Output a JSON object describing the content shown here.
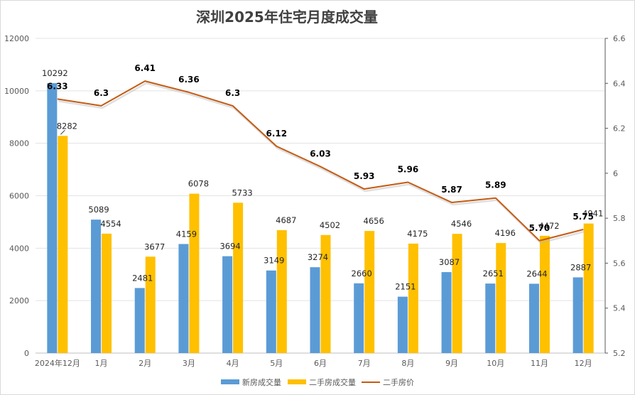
{
  "chart_data": {
    "type": "bar",
    "title": "深圳2025年住宅月度成交量",
    "categories": [
      "2024年12月",
      "1月",
      "2月",
      "3月",
      "4月",
      "5月",
      "6月",
      "7月",
      "8月",
      "9月",
      "10月",
      "11月",
      "12月"
    ],
    "series": [
      {
        "name": "新房成交量",
        "type": "bar",
        "axis": "left",
        "color": "#5b9bd5",
        "values": [
          10292,
          5089,
          2481,
          4159,
          3694,
          3149,
          3274,
          2660,
          2151,
          3087,
          2651,
          2644,
          2887
        ],
        "labels": [
          "10292",
          "5089",
          "2481",
          "4159",
          "3694",
          "3149",
          "3274",
          "2660",
          "2151",
          "3087",
          "2651",
          "2644",
          "2887"
        ]
      },
      {
        "name": "二手房成交量",
        "type": "bar",
        "axis": "left",
        "color": "#ffc000",
        "values": [
          8282,
          4554,
          3677,
          6078,
          5733,
          4687,
          4502,
          4656,
          4175,
          4546,
          4196,
          4472,
          4941
        ],
        "labels": [
          "8282",
          "4554",
          "3677",
          "6078",
          "5733",
          "4687",
          "4502",
          "4656",
          "4175",
          "4546",
          "4196",
          "4472",
          "4941"
        ]
      },
      {
        "name": "二手房价",
        "type": "line",
        "axis": "right",
        "color": "#c55a11",
        "values": [
          6.33,
          6.3,
          6.41,
          6.36,
          6.3,
          6.12,
          6.03,
          5.93,
          5.96,
          5.87,
          5.89,
          5.7,
          5.75
        ],
        "labels": [
          "6.33",
          "6.3",
          "6.41",
          "6.36",
          "6.3",
          "6.12",
          "6.03",
          "5.93",
          "5.96",
          "5.87",
          "5.89",
          "5.70",
          "5.75"
        ]
      }
    ],
    "y_left": {
      "min": 0,
      "max": 12000,
      "ticks": [
        "0",
        "2000",
        "4000",
        "6000",
        "8000",
        "10000",
        "12000"
      ]
    },
    "y_right": {
      "min": 5.2,
      "max": 6.6,
      "ticks": [
        "5.2",
        "5.4",
        "5.6",
        "5.8",
        "6",
        "6.2",
        "6.4",
        "6.6"
      ]
    },
    "grid": true,
    "legend": "bottom"
  }
}
